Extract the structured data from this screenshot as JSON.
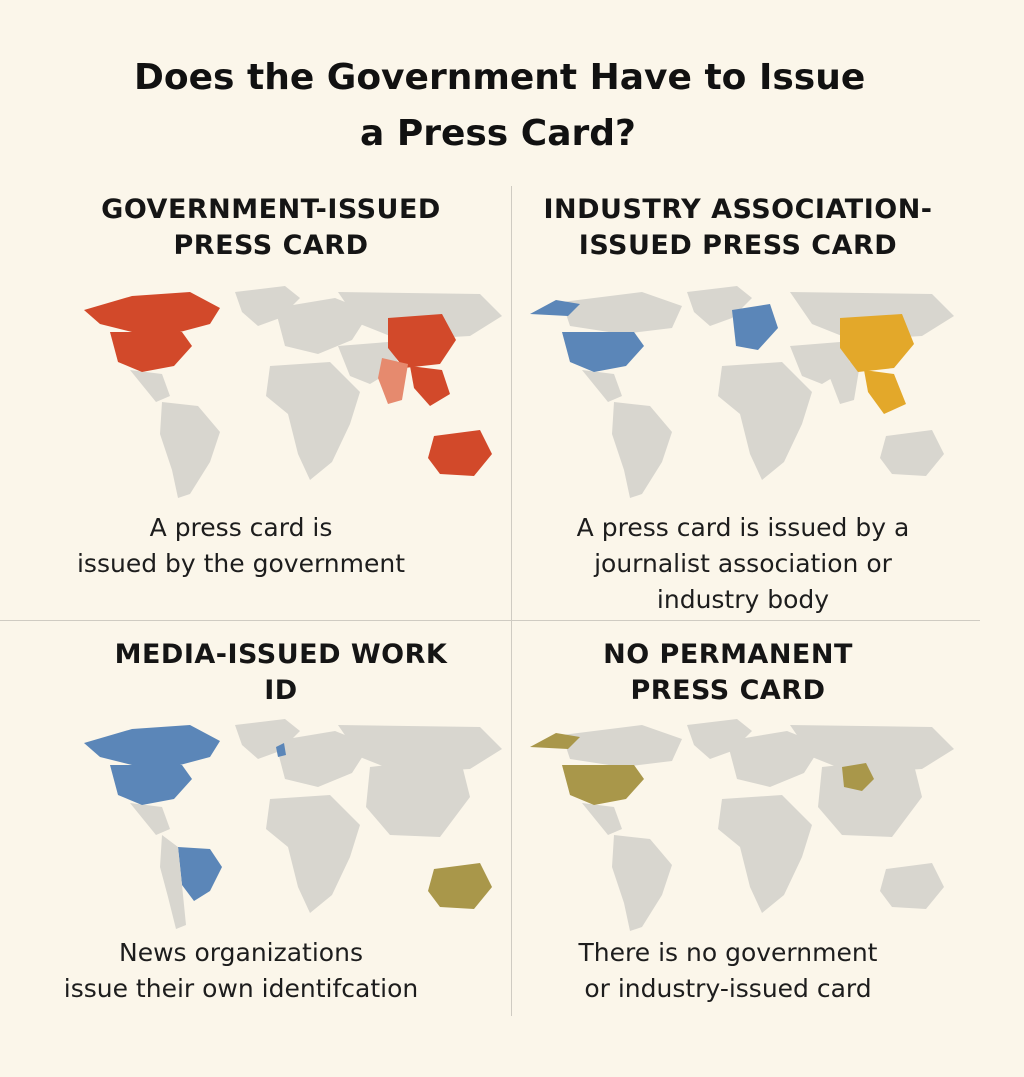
{
  "title": {
    "line1": "Does  the Government Have to Issue",
    "line2": "a Press Card?"
  },
  "panels": [
    {
      "heading": [
        "GOVERNMENT-ISSUED",
        "PRESS CARD"
      ],
      "caption": [
        "A press card is",
        "issued by the government"
      ],
      "highlight_color": "#d2492a",
      "secondary_color": "#e68a6e",
      "highlighted_regions": [
        "Canada",
        "United States",
        "China",
        "Southeast Asia",
        "India",
        "Australia"
      ]
    },
    {
      "heading": [
        "INDUSTRY ASSOCIATION-",
        "ISSUED PRESS CARD"
      ],
      "caption": [
        "A press card is issued by a",
        "journalist association or",
        "industry body"
      ],
      "highlight_color": "#5b86b8",
      "secondary_color": "#e3a82a",
      "highlighted_regions": [
        "Alaska",
        "United States",
        "Europe",
        "China",
        "Southeast Asia"
      ]
    },
    {
      "heading": [
        "MEDIA-ISSUED WORK",
        "ID"
      ],
      "caption": [
        "News organizations",
        "issue their own identifcation"
      ],
      "highlight_color": "#5b86b8",
      "secondary_color": "#a9974a",
      "highlighted_regions": [
        "Canada",
        "United States",
        "United Kingdom",
        "Brazil",
        "Australia"
      ]
    },
    {
      "heading": [
        "NO PERMANENT",
        "PRESS CARD"
      ],
      "caption": [
        "There is no government",
        "or industry-issued card"
      ],
      "highlight_color": "#a9974a",
      "secondary_color": "#a9974a",
      "highlighted_regions": [
        "Alaska",
        "United States",
        "Central China"
      ]
    }
  ]
}
